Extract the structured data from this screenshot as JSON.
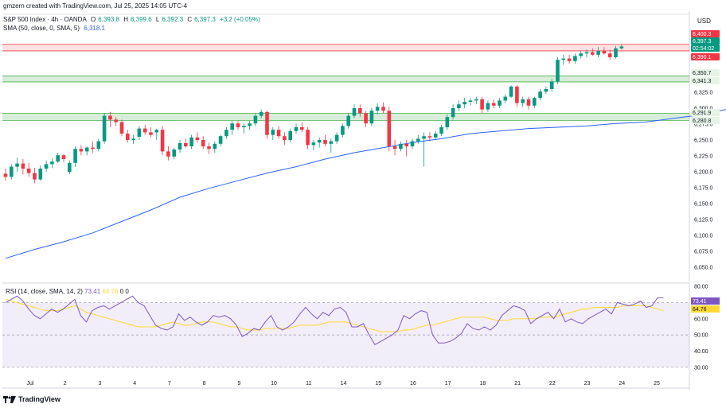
{
  "header": {
    "credit": "gmzern created with TradingView.com, Jul 25, 2025 14:05 UTC-4",
    "symbol": "S&P 500 Index · 4h · OANDA",
    "open_label": "O",
    "open": "6,393.8",
    "high_label": "H",
    "high": "6,399.6",
    "low_label": "L",
    "low": "6,392.3",
    "close_label": "C",
    "close": "6,397.3",
    "change": "+3.2 (+0.05%)",
    "sma_label": "SMA (50, close, 0, SMA, 5)",
    "sma_value": "6,318.1"
  },
  "currency": "USD",
  "footer": {
    "brand": "TradingView"
  },
  "colors": {
    "up": "#089981",
    "down": "#f23645",
    "sma": "#2962ff",
    "rsi": "#7e57c2",
    "rsi_ma": "#fdd835"
  },
  "chart_data": [
    {
      "type": "candlestick",
      "title": "S&P 500 Index · 4h · OANDA",
      "ylim": [
        6030,
        6420
      ],
      "y_ticks": [
        "6,050.0",
        "6,075.0",
        "6,100.0",
        "6,125.0",
        "6,150.0",
        "6,175.0",
        "6,200.0",
        "6,225.0",
        "6,250.0",
        "6,275.0",
        "6,300.0",
        "6,325.0"
      ],
      "x_ticks": [
        "Jul",
        "2",
        "3",
        "4",
        "7",
        "8",
        "9",
        "10",
        "11",
        "14",
        "15",
        "16",
        "17",
        "18",
        "21",
        "22",
        "23",
        "24",
        "25"
      ],
      "candles": [
        [
          6197,
          6205,
          6186,
          6192
        ],
        [
          6192,
          6212,
          6188,
          6208
        ],
        [
          6208,
          6222,
          6200,
          6213
        ],
        [
          6213,
          6220,
          6196,
          6205
        ],
        [
          6205,
          6214,
          6192,
          6198
        ],
        [
          6198,
          6206,
          6182,
          6188
        ],
        [
          6188,
          6210,
          6186,
          6205
        ],
        [
          6205,
          6218,
          6200,
          6212
        ],
        [
          6212,
          6221,
          6206,
          6216
        ],
        [
          6216,
          6230,
          6214,
          6226
        ],
        [
          6226,
          6228,
          6215,
          6220
        ],
        [
          6200,
          6218,
          6196,
          6214
        ],
        [
          6214,
          6240,
          6208,
          6236
        ],
        [
          6236,
          6242,
          6226,
          6232
        ],
        [
          6232,
          6240,
          6226,
          6238
        ],
        [
          6238,
          6248,
          6230,
          6236
        ],
        [
          6236,
          6252,
          6232,
          6248
        ],
        [
          6248,
          6292,
          6244,
          6288
        ],
        [
          6288,
          6294,
          6270,
          6282
        ],
        [
          6282,
          6286,
          6272,
          6278
        ],
        [
          6278,
          6282,
          6256,
          6260
        ],
        [
          6260,
          6266,
          6246,
          6250
        ],
        [
          6250,
          6258,
          6244,
          6252
        ],
        [
          6255,
          6272,
          6250,
          6268
        ],
        [
          6268,
          6274,
          6258,
          6262
        ],
        [
          6262,
          6270,
          6254,
          6258
        ],
        [
          6262,
          6268,
          6250,
          6266
        ],
        [
          6266,
          6272,
          6226,
          6232
        ],
        [
          6232,
          6240,
          6218,
          6224
        ],
        [
          6224,
          6238,
          6220,
          6235
        ],
        [
          6235,
          6250,
          6230,
          6245
        ],
        [
          6245,
          6252,
          6238,
          6240
        ],
        [
          6240,
          6258,
          6236,
          6254
        ],
        [
          6254,
          6262,
          6246,
          6250
        ],
        [
          6250,
          6256,
          6236,
          6240
        ],
        [
          6240,
          6246,
          6228,
          6236
        ],
        [
          6236,
          6248,
          6230,
          6244
        ],
        [
          6244,
          6258,
          6240,
          6256
        ],
        [
          6256,
          6270,
          6252,
          6266
        ],
        [
          6266,
          6280,
          6258,
          6276
        ],
        [
          6276,
          6280,
          6266,
          6270
        ],
        [
          6270,
          6276,
          6260,
          6272
        ],
        [
          6272,
          6280,
          6266,
          6276
        ],
        [
          6276,
          6292,
          6272,
          6288
        ],
        [
          6288,
          6298,
          6284,
          6294
        ],
        [
          6294,
          6296,
          6252,
          6258
        ],
        [
          6258,
          6270,
          6250,
          6266
        ],
        [
          6266,
          6272,
          6252,
          6256
        ],
        [
          6256,
          6262,
          6242,
          6250
        ],
        [
          6250,
          6268,
          6246,
          6264
        ],
        [
          6264,
          6276,
          6260,
          6270
        ],
        [
          6270,
          6278,
          6262,
          6266
        ],
        [
          6266,
          6270,
          6236,
          6242
        ],
        [
          6242,
          6250,
          6234,
          6246
        ],
        [
          6246,
          6254,
          6238,
          6250
        ],
        [
          6250,
          6258,
          6240,
          6244
        ],
        [
          6244,
          6252,
          6230,
          6248
        ],
        [
          6248,
          6262,
          6244,
          6258
        ],
        [
          6258,
          6276,
          6254,
          6272
        ],
        [
          6272,
          6292,
          6268,
          6288
        ],
        [
          6288,
          6306,
          6284,
          6300
        ],
        [
          6300,
          6306,
          6286,
          6292
        ],
        [
          6292,
          6296,
          6270,
          6276
        ],
        [
          6276,
          6300,
          6272,
          6296
        ],
        [
          6296,
          6308,
          6290,
          6302
        ],
        [
          6302,
          6309,
          6292,
          6296
        ],
        [
          6296,
          6302,
          6232,
          6240
        ],
        [
          6240,
          6250,
          6226,
          6236
        ],
        [
          6236,
          6248,
          6232,
          6244
        ],
        [
          6244,
          6250,
          6224,
          6240
        ],
        [
          6240,
          6252,
          6236,
          6248
        ],
        [
          6248,
          6258,
          6244,
          6252
        ],
        [
          6252,
          6262,
          6208,
          6256
        ],
        [
          6256,
          6262,
          6248,
          6254
        ],
        [
          6254,
          6264,
          6250,
          6260
        ],
        [
          6260,
          6274,
          6256,
          6270
        ],
        [
          6270,
          6290,
          6266,
          6286
        ],
        [
          6286,
          6306,
          6282,
          6300
        ],
        [
          6300,
          6312,
          6296,
          6306
        ],
        [
          6306,
          6316,
          6300,
          6310
        ],
        [
          6310,
          6316,
          6304,
          6312
        ],
        [
          6312,
          6318,
          6306,
          6314
        ],
        [
          6314,
          6318,
          6292,
          6298
        ],
        [
          6298,
          6312,
          6294,
          6308
        ],
        [
          6308,
          6314,
          6300,
          6304
        ],
        [
          6304,
          6316,
          6300,
          6312
        ],
        [
          6312,
          6322,
          6308,
          6318
        ],
        [
          6318,
          6336,
          6316,
          6334
        ],
        [
          6334,
          6336,
          6302,
          6308
        ],
        [
          6308,
          6318,
          6302,
          6314
        ],
        [
          6314,
          6318,
          6298,
          6304
        ],
        [
          6304,
          6318,
          6300,
          6316
        ],
        [
          6316,
          6330,
          6312,
          6326
        ],
        [
          6326,
          6334,
          6322,
          6330
        ],
        [
          6330,
          6346,
          6326,
          6342
        ],
        [
          6342,
          6380,
          6338,
          6376
        ],
        [
          6376,
          6384,
          6368,
          6378
        ],
        [
          6378,
          6384,
          6370,
          6374
        ],
        [
          6374,
          6386,
          6370,
          6382
        ],
        [
          6382,
          6390,
          6378,
          6386
        ],
        [
          6386,
          6392,
          6380,
          6388
        ],
        [
          6388,
          6394,
          6382,
          6384
        ],
        [
          6384,
          6396,
          6380,
          6390
        ],
        [
          6390,
          6396,
          6384,
          6386
        ],
        [
          6386,
          6392,
          6376,
          6380
        ],
        [
          6380,
          6398,
          6378,
          6394
        ],
        [
          6394,
          6400,
          6392,
          6397
        ]
      ],
      "sma": [
        [
          0,
          6064
        ],
        [
          5,
          6078
        ],
        [
          10,
          6090
        ],
        [
          15,
          6104
        ],
        [
          20,
          6122
        ],
        [
          25,
          6140
        ],
        [
          30,
          6160
        ],
        [
          35,
          6174
        ],
        [
          40,
          6186
        ],
        [
          45,
          6198
        ],
        [
          50,
          6208
        ],
        [
          55,
          6220
        ],
        [
          60,
          6230
        ],
        [
          65,
          6238
        ],
        [
          70,
          6246
        ],
        [
          75,
          6252
        ],
        [
          80,
          6260
        ],
        [
          85,
          6264
        ],
        [
          90,
          6268
        ],
        [
          95,
          6270
        ],
        [
          100,
          6272
        ],
        [
          105,
          6276
        ],
        [
          110,
          6278
        ],
        [
          115,
          6284
        ],
        [
          120,
          6290
        ],
        [
          125,
          6300
        ],
        [
          130,
          6309
        ],
        [
          135,
          6315
        ],
        [
          138,
          6318
        ]
      ],
      "price_labels": [
        {
          "text": "6,400.3",
          "kind": "resistance"
        },
        {
          "text": "6,397.3",
          "kind": "last"
        },
        {
          "text": "02:54:02",
          "kind": "countdown"
        },
        {
          "text": "6,390.1",
          "kind": "resistance"
        },
        {
          "text": "6,350.7",
          "kind": "zone"
        },
        {
          "text": "6,341.3",
          "kind": "zone"
        },
        {
          "text": "6,291.9",
          "kind": "zone"
        },
        {
          "text": "6,280.8",
          "kind": "zone"
        }
      ],
      "zones": [
        {
          "from": 6390.1,
          "to": 6400.3,
          "color": "red"
        },
        {
          "from": 6341.3,
          "to": 6350.7,
          "color": "green"
        },
        {
          "from": 6280.8,
          "to": 6291.9,
          "color": "green"
        }
      ]
    },
    {
      "type": "line",
      "title": "RSI (14, close, SMA, 14, 2)",
      "legend": {
        "rsi": "73.41",
        "rsi_ma": "64.76",
        "extra1": "0",
        "extra2": "0"
      },
      "ylim": [
        25,
        82
      ],
      "y_ticks": [
        "80.00",
        "70.00",
        "60.00",
        "50.00",
        "40.00",
        "30.00"
      ],
      "levels": [
        70,
        50,
        30
      ],
      "series": [
        {
          "values": [
            70,
            72,
            74,
            71,
            66,
            62,
            60,
            63,
            66,
            64,
            66,
            69,
            72,
            62,
            58,
            65,
            67,
            68,
            66,
            68,
            70,
            72,
            74,
            70,
            68,
            62,
            56,
            54,
            53,
            55,
            63,
            59,
            61,
            58,
            56,
            58,
            62,
            61,
            62,
            60,
            56,
            49,
            51,
            54,
            53,
            58,
            62,
            55,
            53,
            55,
            58,
            63,
            67,
            63,
            60,
            64,
            62,
            66,
            67,
            64,
            55,
            55,
            57,
            50,
            44,
            46,
            48,
            50,
            53,
            62,
            60,
            63,
            65,
            64,
            50,
            45,
            45,
            46,
            48,
            51,
            57,
            54,
            53,
            55,
            53,
            56,
            62,
            65,
            68,
            67,
            65,
            57,
            60,
            62,
            64,
            60,
            66,
            58,
            60,
            58,
            57,
            60,
            62,
            64,
            66,
            63,
            70,
            69,
            68,
            69,
            71,
            67,
            68,
            73,
            73
          ]
        },
        {
          "values": [
            72,
            71,
            70,
            69,
            68,
            67,
            66,
            65,
            65,
            65,
            66,
            67,
            68,
            66,
            64,
            63,
            62,
            61,
            60,
            59,
            58,
            57,
            56,
            55,
            55,
            55,
            55,
            56,
            57,
            58,
            57,
            56,
            56,
            57,
            58,
            58,
            58,
            57,
            56,
            55,
            55,
            54,
            53,
            53,
            53,
            54,
            54,
            54,
            54,
            54,
            55,
            56,
            56,
            56,
            56,
            57,
            58,
            58,
            58,
            58,
            57,
            56,
            55,
            54,
            53,
            52,
            52,
            52,
            52,
            53,
            53,
            54,
            55,
            56,
            56,
            57,
            58,
            59,
            60,
            61,
            61,
            61,
            61,
            61,
            60,
            59,
            59,
            59,
            60,
            60,
            60,
            60,
            60,
            61,
            61,
            61,
            62,
            63,
            64,
            65,
            66,
            66,
            67,
            67,
            67,
            67,
            67,
            68,
            68,
            68,
            68,
            68,
            67,
            66,
            65
          ]
        }
      ]
    }
  ]
}
